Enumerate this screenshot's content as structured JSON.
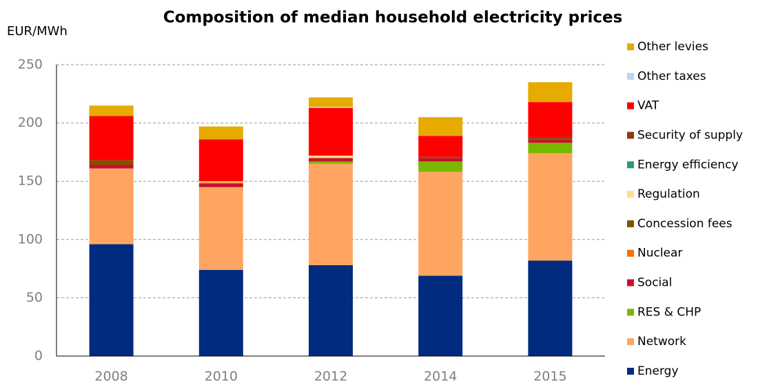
{
  "chart_data": {
    "type": "stacked_bar",
    "title": "Composition of median household electricity prices",
    "y_label": "EUR/MWh",
    "categories": [
      "2008",
      "2010",
      "2012",
      "2014",
      "2015"
    ],
    "series": [
      {
        "name": "Energy",
        "color": "#002b7f",
        "values": [
          96,
          74,
          78,
          69,
          82
        ]
      },
      {
        "name": "Network",
        "color": "#ffa561",
        "values": [
          65,
          71,
          87,
          89,
          92
        ]
      },
      {
        "name": "RES & CHP",
        "color": "#7ab800",
        "values": [
          0,
          0,
          2,
          9,
          9
        ]
      },
      {
        "name": "Social",
        "color": "#c8102e",
        "values": [
          3,
          3,
          3,
          3,
          3
        ]
      },
      {
        "name": "Nuclear",
        "color": "#ff6f00",
        "values": [
          0,
          1,
          0,
          0,
          0
        ]
      },
      {
        "name": "Concession fees",
        "color": "#7f5200",
        "values": [
          4,
          0,
          0,
          1,
          1
        ]
      },
      {
        "name": "Regulation",
        "color": "#ffe08a",
        "values": [
          0,
          1,
          2,
          0,
          0
        ]
      },
      {
        "name": "Energy efficiency",
        "color": "#2e9a7a",
        "values": [
          0,
          0,
          0,
          0,
          0
        ]
      },
      {
        "name": "Security of supply",
        "color": "#8b3a0f",
        "values": [
          0,
          0,
          0,
          0,
          1
        ]
      },
      {
        "name": "VAT",
        "color": "#ff0000",
        "values": [
          38,
          36,
          41,
          18,
          30
        ]
      },
      {
        "name": "Other taxes",
        "color": "#b9d5f5",
        "values": [
          0,
          0,
          1,
          0,
          0
        ]
      },
      {
        "name": "Other levies",
        "color": "#e6aa00",
        "values": [
          9,
          11,
          8,
          16,
          17
        ]
      }
    ],
    "ylim": [
      0,
      250
    ],
    "yticks": [
      0,
      50,
      100,
      150,
      200,
      250
    ],
    "grid": true
  }
}
